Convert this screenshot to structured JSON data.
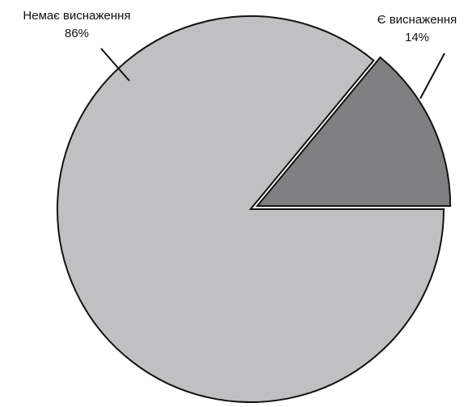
{
  "chart_data": {
    "type": "pie",
    "categories": [
      "Немає виснаження",
      "Є виснаження"
    ],
    "values": [
      86,
      14
    ],
    "value_labels": [
      "86%",
      "14%"
    ],
    "colors": [
      "#c0c0c2",
      "#808082"
    ]
  }
}
